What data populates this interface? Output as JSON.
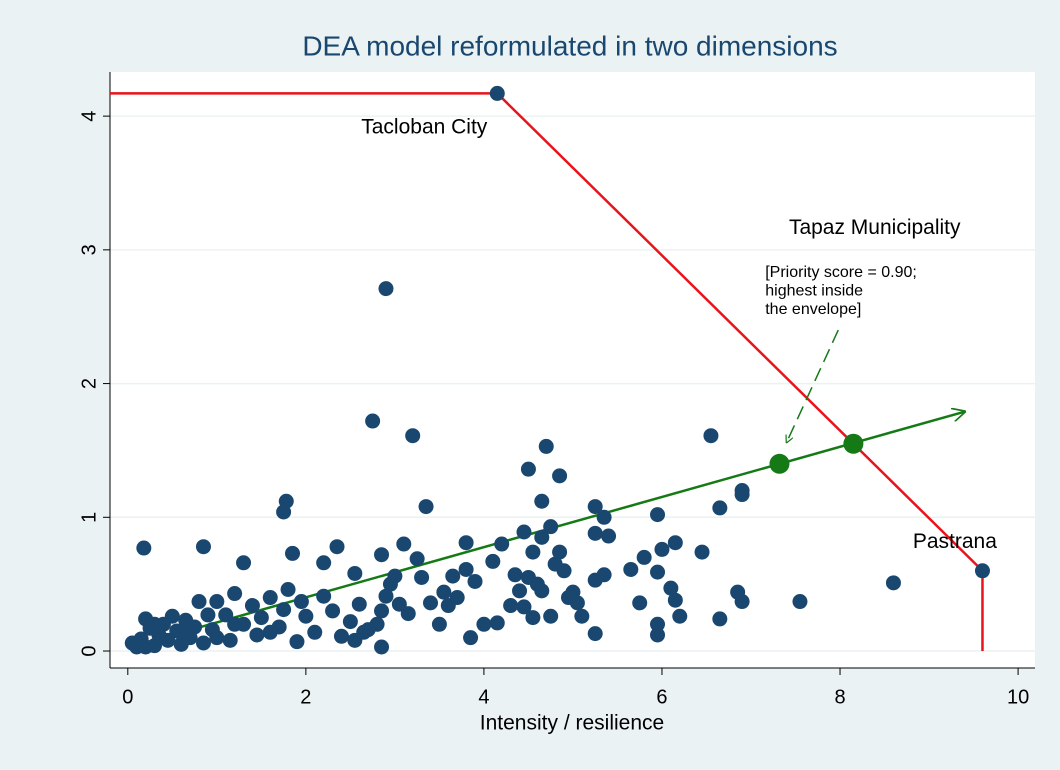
{
  "chart_data": {
    "type": "scatter",
    "title": "DEA model reformulated in two dimensions",
    "xlabel": "Intensity / resilience",
    "xlim": [
      -0.2,
      10.19
    ],
    "ylim": [
      -0.127,
      4.33
    ],
    "xticks": [
      0,
      2,
      4,
      6,
      8,
      10
    ],
    "yticks": [
      0,
      1,
      2,
      3,
      4
    ],
    "grid": true,
    "series": [
      {
        "type": "scatter",
        "color": "#1a476f",
        "x": [
          0.18,
          0.85,
          1.3,
          1.75,
          1.78,
          1.85,
          2.35,
          2.2,
          2.75,
          2.9,
          3.2,
          3.35,
          2.85,
          2.55,
          3.1,
          3.8,
          4.2,
          4.5,
          4.65,
          4.7,
          4.85,
          4.45,
          4.75,
          4.65,
          5.25,
          5.35,
          5.4,
          5.25,
          5.95,
          6.55,
          6.9,
          6.9,
          6.65,
          6.15,
          6.0,
          5.8,
          6.45,
          5.65,
          5.25,
          5.35,
          5.95,
          6.1,
          6.15,
          6.2,
          5.95,
          5.95,
          5.25,
          5.75,
          6.65,
          6.85,
          6.9,
          7.55,
          8.6,
          4.85,
          4.8,
          4.55,
          4.35,
          4.1,
          3.9,
          3.8,
          3.65,
          3.55,
          3.4,
          3.3,
          3.25,
          3.0,
          2.9,
          2.85,
          2.8,
          2.85,
          2.65,
          2.6,
          2.5,
          2.4,
          2.3,
          2.2,
          2.1,
          2.0,
          1.95,
          1.9,
          1.8,
          1.75,
          1.7,
          1.6,
          1.5,
          1.45,
          1.4,
          1.3,
          1.2,
          1.15,
          1.1,
          1.0,
          0.95,
          0.9,
          0.85,
          0.8,
          0.75,
          0.7,
          0.65,
          0.6,
          0.55,
          0.5,
          0.45,
          0.4,
          0.35,
          0.3,
          0.25,
          0.2,
          0.15,
          0.1,
          0.05,
          0.2,
          0.3,
          0.6,
          1.0,
          1.2,
          1.6,
          3.85,
          4.0,
          4.15,
          4.3,
          4.45,
          4.55,
          4.65,
          4.75,
          5.0,
          5.05,
          5.1,
          4.95,
          3.5,
          3.15,
          3.6,
          4.9,
          4.5,
          4.6,
          4.4,
          3.7,
          2.7,
          3.05,
          2.55,
          2.95,
          4.15,
          9.6
        ],
        "y": [
          0.77,
          0.78,
          0.66,
          1.04,
          1.12,
          0.73,
          0.78,
          0.66,
          1.72,
          2.71,
          1.61,
          1.08,
          0.72,
          0.58,
          0.8,
          0.81,
          0.8,
          1.36,
          1.12,
          1.53,
          1.31,
          0.89,
          0.93,
          0.85,
          1.08,
          1.0,
          0.86,
          0.88,
          1.02,
          1.61,
          1.2,
          1.17,
          1.07,
          0.81,
          0.76,
          0.7,
          0.74,
          0.61,
          0.53,
          0.57,
          0.59,
          0.47,
          0.38,
          0.26,
          0.2,
          0.12,
          0.13,
          0.36,
          0.24,
          0.44,
          0.37,
          0.37,
          0.51,
          0.74,
          0.65,
          0.74,
          0.57,
          0.67,
          0.52,
          0.61,
          0.56,
          0.44,
          0.36,
          0.55,
          0.69,
          0.56,
          0.41,
          0.3,
          0.2,
          0.03,
          0.14,
          0.35,
          0.22,
          0.11,
          0.3,
          0.41,
          0.14,
          0.26,
          0.37,
          0.07,
          0.46,
          0.31,
          0.18,
          0.4,
          0.25,
          0.12,
          0.34,
          0.2,
          0.43,
          0.08,
          0.27,
          0.37,
          0.16,
          0.27,
          0.06,
          0.37,
          0.18,
          0.1,
          0.23,
          0.05,
          0.15,
          0.26,
          0.08,
          0.2,
          0.12,
          0.04,
          0.17,
          0.24,
          0.09,
          0.03,
          0.06,
          0.03,
          0.2,
          0.14,
          0.1,
          0.2,
          0.14,
          0.1,
          0.2,
          0.21,
          0.34,
          0.33,
          0.25,
          0.45,
          0.26,
          0.44,
          0.36,
          0.26,
          0.4,
          0.2,
          0.28,
          0.34,
          0.6,
          0.55,
          0.5,
          0.45,
          0.4,
          0.16,
          0.35,
          0.08,
          0.5,
          4.17,
          0.6
        ]
      },
      {
        "type": "line",
        "color": "#e8141c",
        "x": [
          -0.2,
          4.15,
          9.6,
          9.6
        ],
        "y": [
          4.17,
          4.17,
          0.6,
          0
        ]
      },
      {
        "type": "arrow",
        "color": "#157a15",
        "x": [
          0.02,
          9.4
        ],
        "y": [
          0.03,
          1.79
        ]
      },
      {
        "type": "scatter_large",
        "color": "#157a15",
        "x": [
          7.32,
          8.15
        ],
        "y": [
          1.4,
          1.55
        ]
      },
      {
        "type": "dashed_arrow",
        "color": "#157a15",
        "x": [
          7.98,
          7.4
        ],
        "y": [
          2.4,
          1.56
        ]
      }
    ],
    "annotations": [
      {
        "text": "Tacloban City",
        "x": 3.33,
        "y": 3.91,
        "align": "middle",
        "size": 21
      },
      {
        "text": "Tapaz Municipality",
        "x": 8.39,
        "y": 3.16,
        "align": "middle",
        "size": 21
      },
      {
        "text": "[Priority score = 0.90;",
        "x": 7.16,
        "y": 2.83,
        "align": "start",
        "size": 16
      },
      {
        "text": "highest inside",
        "x": 7.16,
        "y": 2.69,
        "align": "start",
        "size": 16
      },
      {
        "text": "the envelope]",
        "x": 7.16,
        "y": 2.55,
        "align": "start",
        "size": 16
      },
      {
        "text": "Pastrana",
        "x": 9.29,
        "y": 0.81,
        "align": "middle",
        "size": 21
      }
    ]
  }
}
